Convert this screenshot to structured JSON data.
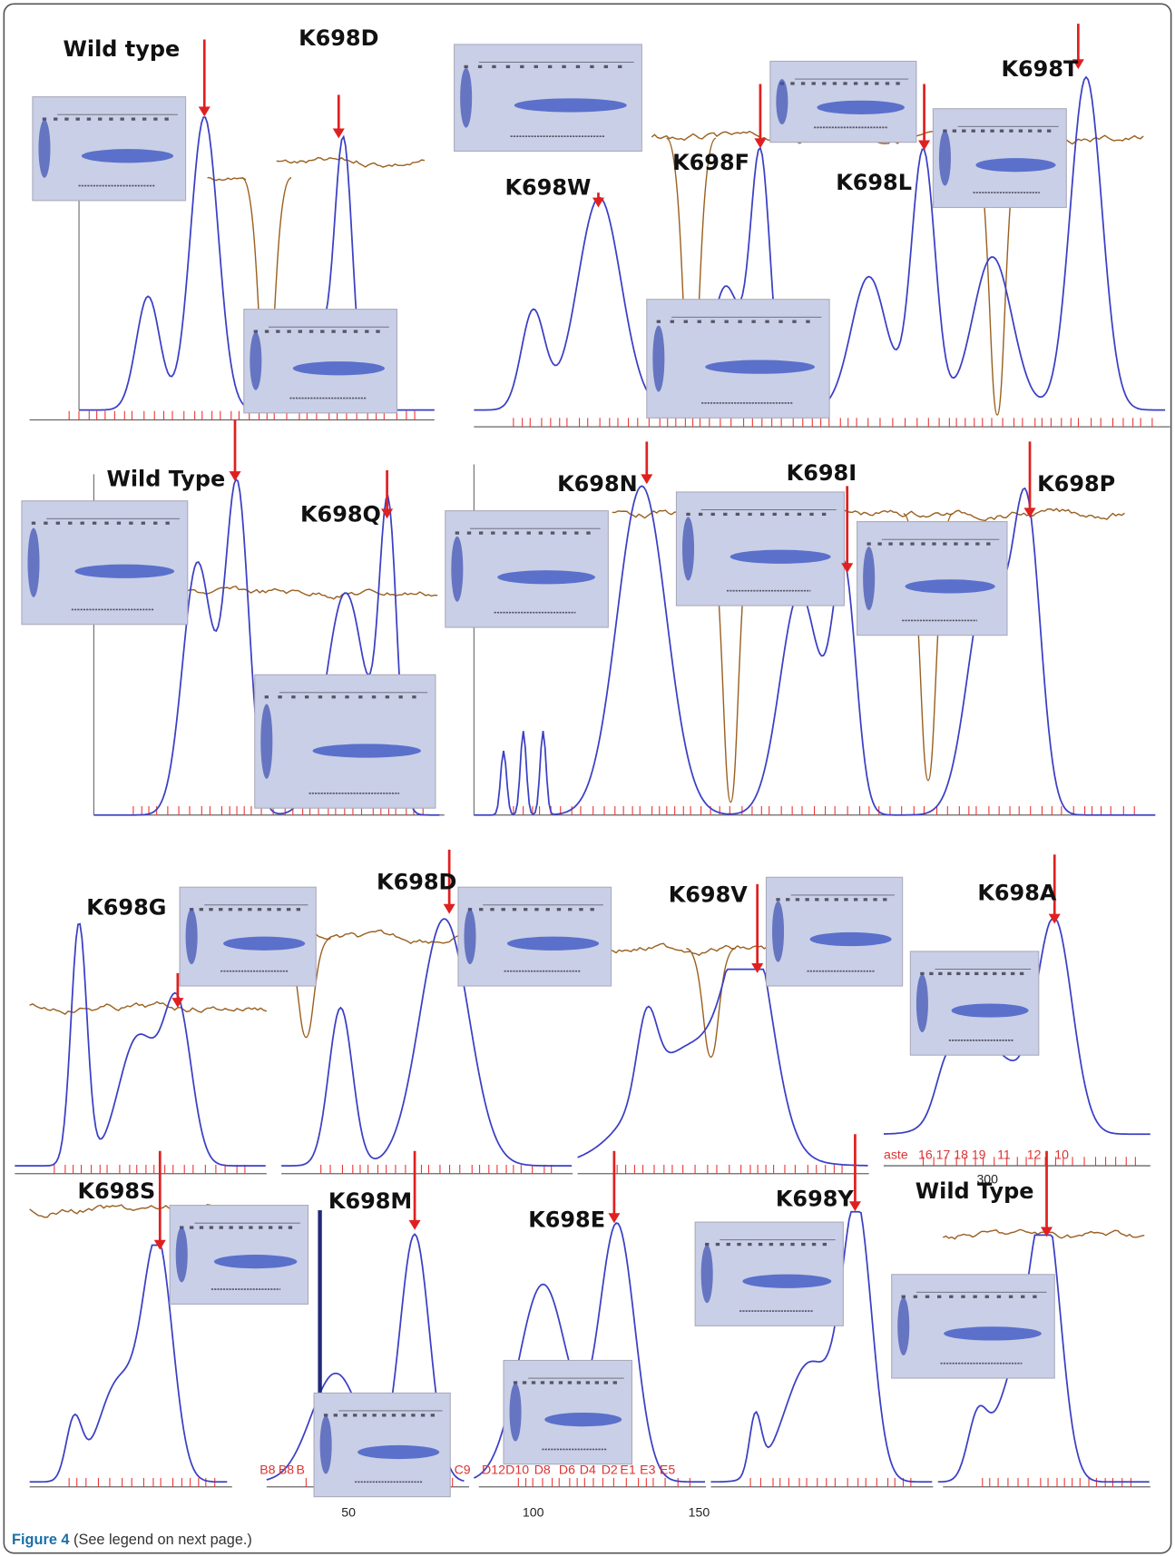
{
  "panels": [
    {
      "label": "Wild type"
    },
    {
      "label": "K698D"
    },
    {
      "label": "K698W"
    },
    {
      "label": "K698F"
    },
    {
      "label": "K698L"
    },
    {
      "label": "K698T"
    },
    {
      "label": "Wild Type"
    },
    {
      "label": "K698Q"
    },
    {
      "label": "K698N"
    },
    {
      "label": "K698I"
    },
    {
      "label": "K698P"
    },
    {
      "label": "K698G"
    },
    {
      "label": "K698D"
    },
    {
      "label": "K698V"
    },
    {
      "label": "K698A"
    },
    {
      "label": "K698S"
    },
    {
      "label": "K698M"
    },
    {
      "label": "K698E"
    },
    {
      "label": "K698Y"
    },
    {
      "label": "Wild Type"
    }
  ],
  "axis_labels": [
    "300",
    "50",
    "100",
    "150"
  ],
  "fraction_labels": [
    "aste",
    "16",
    "17",
    "18",
    "19",
    "11",
    "12",
    "10",
    "B8",
    "B8",
    "B",
    "C9",
    "D12",
    "D10",
    "D8",
    "D6",
    "D4",
    "D2",
    "E1",
    "E3",
    "E5"
  ],
  "caption": {
    "label": "Figure 4",
    "text": "(See legend on next page.)"
  }
}
